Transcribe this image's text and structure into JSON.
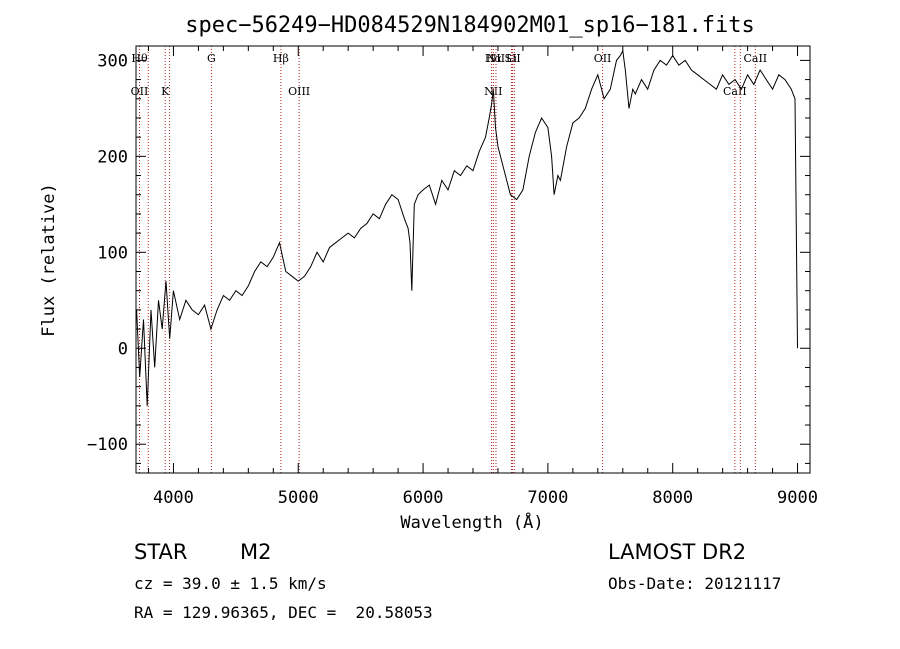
{
  "chart_data": {
    "type": "line",
    "title": "spec−56249−HD084529N184902M01_sp16−181.fits",
    "xlabel": "Wavelength (Å)",
    "ylabel": "Flux (relative)",
    "xlim": [
      3700,
      9100
    ],
    "ylim": [
      -130,
      315
    ],
    "xticks": [
      {
        "v": 4000,
        "label": "4000"
      },
      {
        "v": 5000,
        "label": "5000"
      },
      {
        "v": 6000,
        "label": "6000"
      },
      {
        "v": 7000,
        "label": "7000"
      },
      {
        "v": 8000,
        "label": "8000"
      },
      {
        "v": 9000,
        "label": "9000"
      }
    ],
    "yticks": [
      {
        "v": -100,
        "label": "−100"
      },
      {
        "v": 0,
        "label": "0"
      },
      {
        "v": 100,
        "label": "100"
      },
      {
        "v": 200,
        "label": "200"
      },
      {
        "v": 300,
        "label": "300"
      }
    ],
    "grid": false,
    "series": [
      {
        "x": [
          3705,
          3730,
          3760,
          3790,
          3820,
          3850,
          3880,
          3910,
          3940,
          3970,
          4000,
          4050,
          4100,
          4150,
          4200,
          4250,
          4300,
          4350,
          4400,
          4450,
          4500,
          4550,
          4600,
          4650,
          4700,
          4750,
          4800,
          4850,
          4900,
          4950,
          5000,
          5050,
          5100,
          5150,
          5200,
          5250,
          5300,
          5350,
          5400,
          5450,
          5500,
          5550,
          5600,
          5650,
          5700,
          5750,
          5800,
          5850,
          5880,
          5895,
          5910,
          5930,
          5960,
          6000,
          6050,
          6100,
          6150,
          6200,
          6250,
          6300,
          6350,
          6400,
          6450,
          6500,
          6530,
          6550,
          6563,
          6580,
          6600,
          6650,
          6700,
          6750,
          6800,
          6850,
          6900,
          6950,
          7000,
          7030,
          7050,
          7080,
          7100,
          7150,
          7200,
          7250,
          7300,
          7350,
          7400,
          7450,
          7500,
          7550,
          7580,
          7600,
          7620,
          7650,
          7680,
          7700,
          7750,
          7800,
          7850,
          7900,
          7950,
          8000,
          8050,
          8100,
          8150,
          8200,
          8250,
          8300,
          8350,
          8400,
          8450,
          8500,
          8550,
          8600,
          8650,
          8700,
          8750,
          8800,
          8850,
          8900,
          8950,
          8980,
          9000
        ],
        "y": [
          40,
          -30,
          30,
          -60,
          40,
          -20,
          50,
          20,
          70,
          10,
          60,
          30,
          50,
          40,
          35,
          45,
          20,
          40,
          55,
          50,
          60,
          55,
          65,
          80,
          90,
          85,
          95,
          110,
          80,
          75,
          70,
          75,
          85,
          100,
          90,
          105,
          110,
          115,
          120,
          115,
          125,
          130,
          140,
          135,
          150,
          160,
          155,
          135,
          125,
          110,
          60,
          150,
          160,
          165,
          170,
          150,
          175,
          165,
          185,
          180,
          190,
          185,
          205,
          220,
          240,
          255,
          270,
          230,
          210,
          185,
          160,
          155,
          165,
          200,
          225,
          240,
          230,
          200,
          160,
          180,
          175,
          210,
          235,
          240,
          250,
          270,
          285,
          260,
          270,
          300,
          305,
          310,
          290,
          250,
          270,
          265,
          280,
          270,
          290,
          300,
          295,
          305,
          295,
          300,
          290,
          285,
          280,
          275,
          270,
          285,
          275,
          280,
          270,
          285,
          275,
          290,
          280,
          270,
          285,
          280,
          270,
          260,
          0
        ]
      }
    ],
    "lines": [
      {
        "x": 3728,
        "top": "Hθ",
        "bottom": "OII"
      },
      {
        "x": 3798,
        "top": "",
        "bottom": ""
      },
      {
        "x": 3934,
        "top": "",
        "bottom": "K"
      },
      {
        "x": 3969,
        "top": "",
        "bottom": ""
      },
      {
        "x": 4304,
        "top": "G",
        "bottom": ""
      },
      {
        "x": 4861,
        "top": "Hβ",
        "bottom": ""
      },
      {
        "x": 5007,
        "top": "",
        "bottom": "OIII"
      },
      {
        "x": 6548,
        "top": "",
        "bottom": ""
      },
      {
        "x": 6563,
        "top": "Hα",
        "bottom": "NII"
      },
      {
        "x": 6584,
        "top": "NII",
        "bottom": ""
      },
      {
        "x": 6708,
        "top": "Li",
        "bottom": ""
      },
      {
        "x": 6717,
        "top": "SII",
        "bottom": ""
      },
      {
        "x": 6731,
        "top": "",
        "bottom": ""
      },
      {
        "x": 7438,
        "top": "OII",
        "bottom": ""
      },
      {
        "x": 8498,
        "top": "",
        "bottom": "CaII"
      },
      {
        "x": 8542,
        "top": "",
        "bottom": ""
      },
      {
        "x": 8662,
        "top": "CaII",
        "bottom": ""
      }
    ]
  },
  "info": {
    "class": "STAR",
    "subclass": "M2",
    "survey": "LAMOST DR2",
    "cz": "cz = 39.0 ± 1.5 km/s",
    "obs_date": "Obs-Date: 20121117",
    "coords": "RA = 129.96365, DEC =  20.58053"
  }
}
